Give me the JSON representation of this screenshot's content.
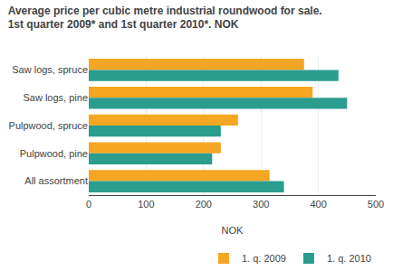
{
  "chart_data": {
    "type": "bar",
    "orientation": "horizontal",
    "title": "Average price per cubic metre industrial roundwood for sale.",
    "subtitle": "1st quarter 2009* and 1st quarter 2010*. NOK",
    "categories": [
      "Saw logs, spruce",
      "Saw logs, pine",
      "Pulpwood, spruce",
      "Pulpwood, pine",
      "All assortment"
    ],
    "series": [
      {
        "name": "1. q. 2009",
        "color": "#F5A623",
        "values": [
          375,
          390,
          260,
          230,
          315
        ]
      },
      {
        "name": "1. q. 2010",
        "color": "#2A9D8F",
        "values": [
          435,
          450,
          230,
          215,
          340
        ]
      }
    ],
    "xlabel": "NOK",
    "xlim": [
      0,
      500
    ],
    "xticks": [
      0,
      100,
      200,
      300,
      400,
      500
    ],
    "grid": true,
    "legend": "lower right"
  }
}
